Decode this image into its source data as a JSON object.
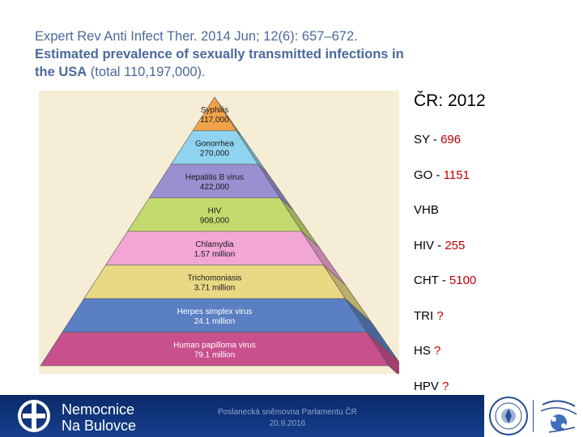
{
  "citation": {
    "line1": "Expert Rev Anti Infect Ther. 2014 Jun; 12(6): 657–672.",
    "bold": "Estimated prevalence of sexually transmitted infections in the USA",
    "rest": " (total 110,197,000)."
  },
  "pyramid": {
    "levels": [
      {
        "name": "Syphilis",
        "value": "117,000",
        "color": "#f0a24a"
      },
      {
        "name": "Gonorrhea",
        "value": "270,000",
        "color": "#8fd3f0"
      },
      {
        "name": "Hepatitis B virus",
        "value": "422,000",
        "color": "#9a8fd0"
      },
      {
        "name": "HIV",
        "value": "908,000",
        "color": "#c3db6e"
      },
      {
        "name": "Chlamydia",
        "value": "1.57 million",
        "color": "#f2a6d4"
      },
      {
        "name": "Trichomoniasis",
        "value": "3.71 million",
        "color": "#e9d985"
      },
      {
        "name": "Herpes simplex virus",
        "value": "24.1 million",
        "color": "#5a7fc2"
      },
      {
        "name": "Human papilloma virus",
        "value": "79.1 million",
        "color": "#c8508c"
      }
    ]
  },
  "cz": {
    "title": "ČR: 2012",
    "rows": [
      {
        "label": "SY - ",
        "value": "696"
      },
      {
        "label": "GO - ",
        "value": "1151"
      },
      {
        "label": "VHB",
        "value": ""
      },
      {
        "label": "HIV - ",
        "value": "255"
      },
      {
        "label": "CHT - ",
        "value": "5100"
      },
      {
        "label": "TRI ",
        "value": "?"
      },
      {
        "label": "HS ",
        "value": "?"
      },
      {
        "label": "HPV ",
        "value": "?"
      }
    ]
  },
  "footer": {
    "hospital_line1": "Nemocnice",
    "hospital_line2": "Na Bulovce",
    "center_line1": "Poslanecká sněmovna Parlamentu ČR",
    "center_line2": "20.9.2016"
  }
}
